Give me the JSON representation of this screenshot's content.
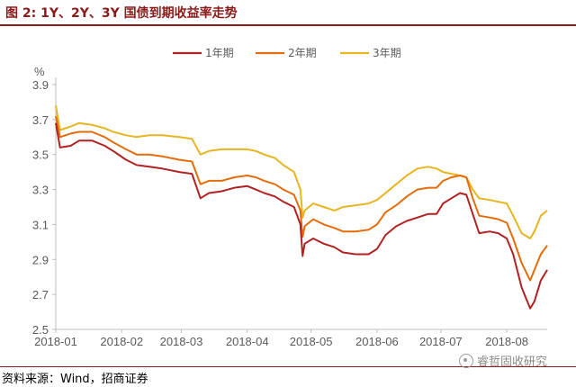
{
  "figure": {
    "title": "图 2:  1Y、2Y、3Y 国债到期收益率走势",
    "source": "资料来源：Wind，招商证券",
    "watermark": "睿哲固收研究",
    "watermark_icon": "wechat-logo-icon"
  },
  "chart_data": {
    "type": "line",
    "ylabel": "%",
    "ylim": [
      2.5,
      3.9
    ],
    "yticks": [
      2.5,
      2.7,
      2.9,
      3.1,
      3.3,
      3.5,
      3.7,
      3.9
    ],
    "ytick_labels": [
      "2.5",
      "2.7",
      "2.9",
      "3.1",
      "3.3",
      "3.5",
      "3.7",
      "3.9"
    ],
    "x_start": "2018-01-01",
    "x_end": "2018-08-20",
    "xticks": [
      "2018-01",
      "2018-02",
      "2018-03",
      "2018-04",
      "2018-05",
      "2018-06",
      "2018-07",
      "2018-08"
    ],
    "grid": false,
    "legend_position": "top-center",
    "series": [
      {
        "name": "1年期",
        "color": "#b22222",
        "points": [
          [
            "2018-01-01",
            3.68
          ],
          [
            "2018-01-03",
            3.54
          ],
          [
            "2018-01-08",
            3.55
          ],
          [
            "2018-01-12",
            3.58
          ],
          [
            "2018-01-18",
            3.58
          ],
          [
            "2018-01-24",
            3.55
          ],
          [
            "2018-01-28",
            3.52
          ],
          [
            "2018-02-03",
            3.47
          ],
          [
            "2018-02-08",
            3.44
          ],
          [
            "2018-02-14",
            3.43
          ],
          [
            "2018-02-20",
            3.42
          ],
          [
            "2018-02-28",
            3.4
          ],
          [
            "2018-03-06",
            3.39
          ],
          [
            "2018-03-10",
            3.25
          ],
          [
            "2018-03-14",
            3.28
          ],
          [
            "2018-03-20",
            3.29
          ],
          [
            "2018-03-26",
            3.31
          ],
          [
            "2018-04-01",
            3.32
          ],
          [
            "2018-04-05",
            3.3
          ],
          [
            "2018-04-09",
            3.28
          ],
          [
            "2018-04-14",
            3.26
          ],
          [
            "2018-04-18",
            3.23
          ],
          [
            "2018-04-23",
            3.2
          ],
          [
            "2018-04-26",
            3.1
          ],
          [
            "2018-04-27",
            2.92
          ],
          [
            "2018-04-28",
            2.99
          ],
          [
            "2018-05-02",
            3.02
          ],
          [
            "2018-05-07",
            2.99
          ],
          [
            "2018-05-12",
            2.97
          ],
          [
            "2018-05-16",
            2.94
          ],
          [
            "2018-05-22",
            2.93
          ],
          [
            "2018-05-28",
            2.93
          ],
          [
            "2018-06-01",
            2.96
          ],
          [
            "2018-06-05",
            3.04
          ],
          [
            "2018-06-10",
            3.09
          ],
          [
            "2018-06-15",
            3.12
          ],
          [
            "2018-06-20",
            3.14
          ],
          [
            "2018-06-25",
            3.16
          ],
          [
            "2018-06-29",
            3.16
          ],
          [
            "2018-07-02",
            3.22
          ],
          [
            "2018-07-06",
            3.25
          ],
          [
            "2018-07-10",
            3.28
          ],
          [
            "2018-07-13",
            3.27
          ],
          [
            "2018-07-16",
            3.16
          ],
          [
            "2018-07-19",
            3.05
          ],
          [
            "2018-07-24",
            3.06
          ],
          [
            "2018-07-28",
            3.05
          ],
          [
            "2018-08-01",
            3.02
          ],
          [
            "2018-08-04",
            2.93
          ],
          [
            "2018-08-08",
            2.74
          ],
          [
            "2018-08-12",
            2.62
          ],
          [
            "2018-08-14",
            2.66
          ],
          [
            "2018-08-17",
            2.78
          ],
          [
            "2018-08-20",
            2.84
          ]
        ]
      },
      {
        "name": "2年期",
        "color": "#e46c0a",
        "points": [
          [
            "2018-01-01",
            3.72
          ],
          [
            "2018-01-03",
            3.6
          ],
          [
            "2018-01-08",
            3.62
          ],
          [
            "2018-01-12",
            3.63
          ],
          [
            "2018-01-18",
            3.63
          ],
          [
            "2018-01-24",
            3.6
          ],
          [
            "2018-01-28",
            3.57
          ],
          [
            "2018-02-03",
            3.53
          ],
          [
            "2018-02-08",
            3.5
          ],
          [
            "2018-02-14",
            3.5
          ],
          [
            "2018-02-20",
            3.49
          ],
          [
            "2018-02-28",
            3.47
          ],
          [
            "2018-03-06",
            3.46
          ],
          [
            "2018-03-10",
            3.33
          ],
          [
            "2018-03-14",
            3.35
          ],
          [
            "2018-03-20",
            3.35
          ],
          [
            "2018-03-26",
            3.37
          ],
          [
            "2018-04-01",
            3.38
          ],
          [
            "2018-04-05",
            3.37
          ],
          [
            "2018-04-09",
            3.35
          ],
          [
            "2018-04-14",
            3.33
          ],
          [
            "2018-04-18",
            3.3
          ],
          [
            "2018-04-23",
            3.27
          ],
          [
            "2018-04-26",
            3.18
          ],
          [
            "2018-04-27",
            3.03
          ],
          [
            "2018-04-28",
            3.09
          ],
          [
            "2018-05-02",
            3.13
          ],
          [
            "2018-05-07",
            3.1
          ],
          [
            "2018-05-12",
            3.08
          ],
          [
            "2018-05-16",
            3.06
          ],
          [
            "2018-05-22",
            3.06
          ],
          [
            "2018-05-28",
            3.07
          ],
          [
            "2018-06-01",
            3.1
          ],
          [
            "2018-06-05",
            3.17
          ],
          [
            "2018-06-10",
            3.21
          ],
          [
            "2018-06-15",
            3.26
          ],
          [
            "2018-06-20",
            3.3
          ],
          [
            "2018-06-25",
            3.31
          ],
          [
            "2018-06-29",
            3.31
          ],
          [
            "2018-07-02",
            3.35
          ],
          [
            "2018-07-06",
            3.37
          ],
          [
            "2018-07-10",
            3.38
          ],
          [
            "2018-07-13",
            3.37
          ],
          [
            "2018-07-16",
            3.25
          ],
          [
            "2018-07-19",
            3.15
          ],
          [
            "2018-07-24",
            3.14
          ],
          [
            "2018-07-28",
            3.13
          ],
          [
            "2018-08-01",
            3.11
          ],
          [
            "2018-08-04",
            3.02
          ],
          [
            "2018-08-08",
            2.88
          ],
          [
            "2018-08-12",
            2.78
          ],
          [
            "2018-08-14",
            2.84
          ],
          [
            "2018-08-17",
            2.93
          ],
          [
            "2018-08-20",
            2.98
          ]
        ]
      },
      {
        "name": "3年期",
        "color": "#e8b420",
        "points": [
          [
            "2018-01-01",
            3.78
          ],
          [
            "2018-01-03",
            3.64
          ],
          [
            "2018-01-08",
            3.66
          ],
          [
            "2018-01-12",
            3.68
          ],
          [
            "2018-01-18",
            3.67
          ],
          [
            "2018-01-24",
            3.65
          ],
          [
            "2018-01-28",
            3.63
          ],
          [
            "2018-02-03",
            3.61
          ],
          [
            "2018-02-08",
            3.6
          ],
          [
            "2018-02-14",
            3.61
          ],
          [
            "2018-02-20",
            3.61
          ],
          [
            "2018-02-28",
            3.6
          ],
          [
            "2018-03-06",
            3.59
          ],
          [
            "2018-03-10",
            3.5
          ],
          [
            "2018-03-14",
            3.52
          ],
          [
            "2018-03-20",
            3.53
          ],
          [
            "2018-03-26",
            3.53
          ],
          [
            "2018-04-01",
            3.53
          ],
          [
            "2018-04-05",
            3.52
          ],
          [
            "2018-04-09",
            3.5
          ],
          [
            "2018-04-14",
            3.48
          ],
          [
            "2018-04-18",
            3.44
          ],
          [
            "2018-04-23",
            3.4
          ],
          [
            "2018-04-26",
            3.3
          ],
          [
            "2018-04-27",
            3.14
          ],
          [
            "2018-04-28",
            3.18
          ],
          [
            "2018-05-02",
            3.22
          ],
          [
            "2018-05-07",
            3.2
          ],
          [
            "2018-05-12",
            3.18
          ],
          [
            "2018-05-16",
            3.2
          ],
          [
            "2018-05-22",
            3.21
          ],
          [
            "2018-05-28",
            3.22
          ],
          [
            "2018-06-01",
            3.24
          ],
          [
            "2018-06-05",
            3.28
          ],
          [
            "2018-06-10",
            3.33
          ],
          [
            "2018-06-15",
            3.38
          ],
          [
            "2018-06-20",
            3.42
          ],
          [
            "2018-06-25",
            3.43
          ],
          [
            "2018-06-29",
            3.42
          ],
          [
            "2018-07-02",
            3.4
          ],
          [
            "2018-07-06",
            3.39
          ],
          [
            "2018-07-10",
            3.38
          ],
          [
            "2018-07-13",
            3.37
          ],
          [
            "2018-07-16",
            3.3
          ],
          [
            "2018-07-19",
            3.25
          ],
          [
            "2018-07-24",
            3.24
          ],
          [
            "2018-07-28",
            3.23
          ],
          [
            "2018-08-01",
            3.22
          ],
          [
            "2018-08-04",
            3.15
          ],
          [
            "2018-08-08",
            3.05
          ],
          [
            "2018-08-12",
            3.02
          ],
          [
            "2018-08-14",
            3.06
          ],
          [
            "2018-08-17",
            3.15
          ],
          [
            "2018-08-20",
            3.18
          ]
        ]
      }
    ]
  }
}
